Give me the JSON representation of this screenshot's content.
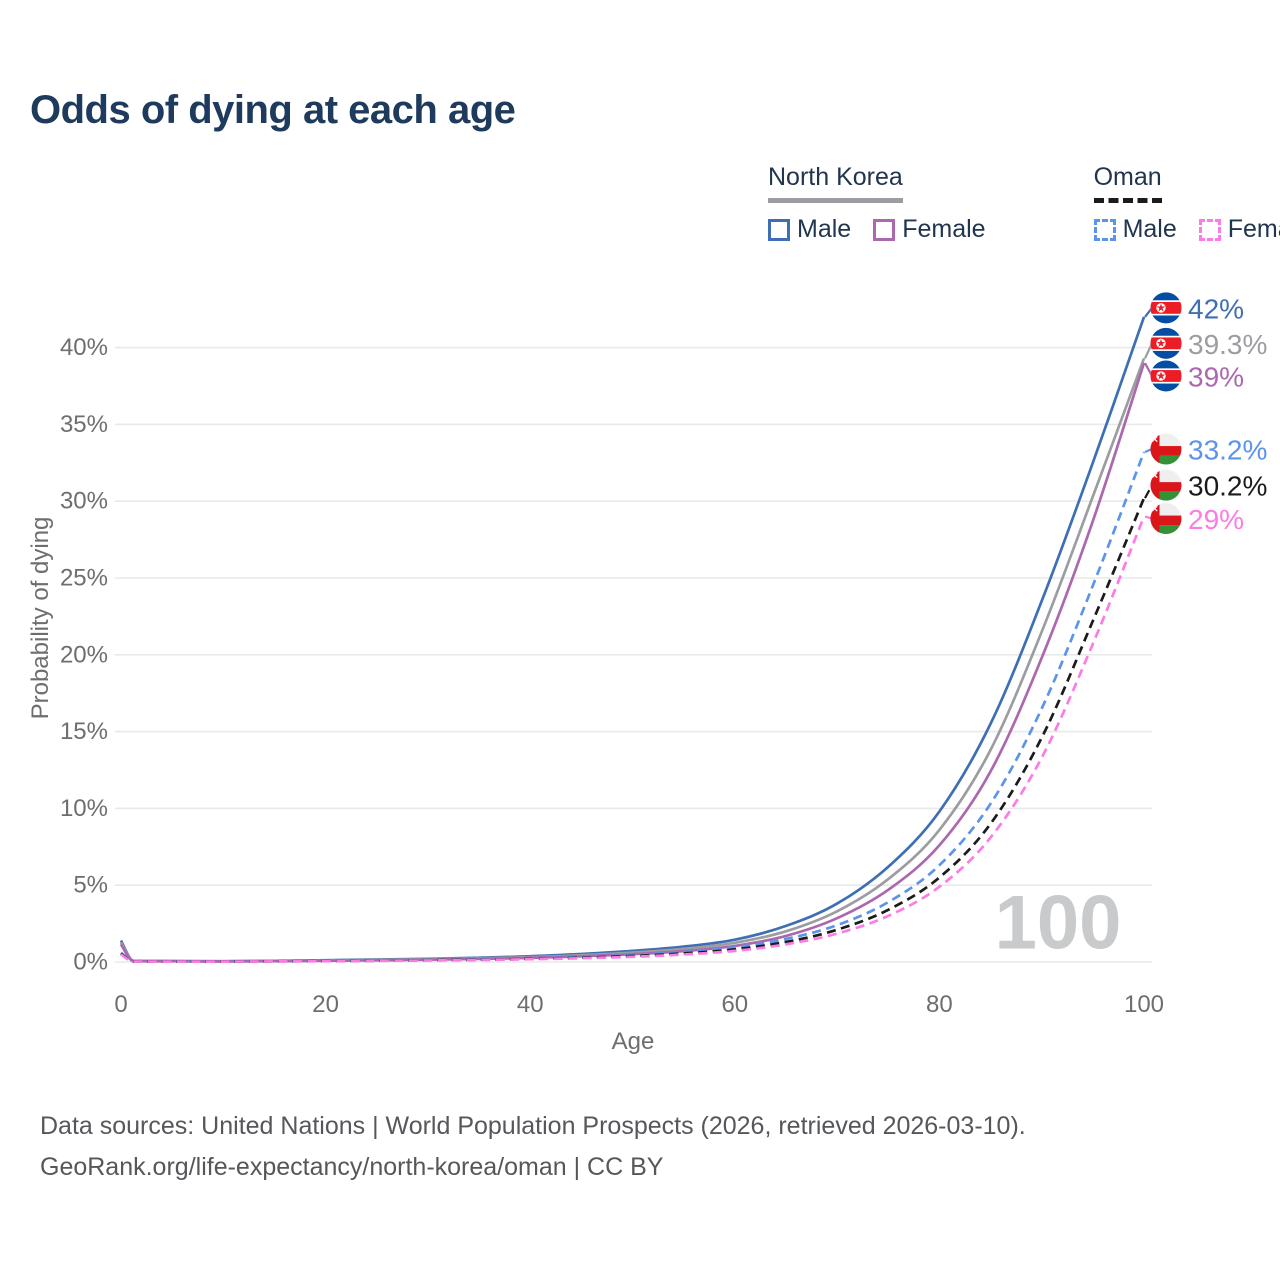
{
  "title": "Odds of dying at each age",
  "legend": {
    "groups": [
      {
        "label": "North Korea",
        "style_series": "nk_both",
        "items": [
          {
            "label": "Male",
            "series": "nk_male"
          },
          {
            "label": "Female",
            "series": "nk_female"
          }
        ]
      },
      {
        "label": "Oman",
        "style_series": "om_both",
        "items": [
          {
            "label": "Male",
            "series": "om_male"
          },
          {
            "label": "Female",
            "series": "om_female"
          }
        ]
      }
    ]
  },
  "watermark": "100",
  "footer": {
    "line1": "Data sources: United Nations | World Population Prospects (2026, retrieved 2026-03-10).",
    "line2": "GeoRank.org/life-expectancy/north-korea/oman | CC BY"
  },
  "chart_data": {
    "type": "line",
    "title": "Odds of dying at each age",
    "xlabel": "Age",
    "ylabel": "Probability of dying",
    "xlim": [
      0,
      100
    ],
    "ylim": [
      0,
      44
    ],
    "x_ticks": [
      0,
      20,
      40,
      60,
      80,
      100
    ],
    "y_ticks": [
      0,
      5,
      10,
      15,
      20,
      25,
      30,
      35,
      40
    ],
    "grid": true,
    "legend_position": "top-right",
    "x_unit": "years",
    "y_unit": "percent",
    "ages": [
      0,
      1,
      2,
      5,
      10,
      15,
      20,
      25,
      30,
      35,
      40,
      45,
      50,
      55,
      60,
      65,
      70,
      75,
      80,
      85,
      90,
      95,
      100
    ],
    "series": [
      {
        "key": "nk_male",
        "country": "North Korea",
        "sex": "Male",
        "color": "#3E6FB4",
        "dash": "solid",
        "flag": "kp",
        "end_label": "42%",
        "label_dy": -9,
        "values": [
          1.4,
          0.15,
          0.08,
          0.06,
          0.05,
          0.07,
          0.12,
          0.16,
          0.21,
          0.28,
          0.38,
          0.52,
          0.72,
          1.0,
          1.45,
          2.35,
          3.8,
          6.2,
          9.8,
          15.5,
          23.5,
          32.5,
          42.0
        ]
      },
      {
        "key": "nk_both",
        "country": "North Korea",
        "sex": "Both sexes",
        "color": "#9B9DA0",
        "dash": "solid",
        "flag": "kp",
        "end_label": "39.3%",
        "label_dy": -15,
        "values": [
          1.27,
          0.14,
          0.07,
          0.055,
          0.045,
          0.06,
          0.1,
          0.135,
          0.18,
          0.24,
          0.32,
          0.44,
          0.61,
          0.85,
          1.25,
          2.0,
          3.3,
          5.4,
          8.6,
          13.8,
          21.5,
          30.3,
          39.3
        ]
      },
      {
        "key": "nk_female",
        "country": "North Korea",
        "sex": "Female",
        "color": "#AC68AE",
        "dash": "solid",
        "flag": "kp",
        "end_label": "39%",
        "label_dy": 13,
        "values": [
          1.15,
          0.12,
          0.06,
          0.05,
          0.04,
          0.05,
          0.08,
          0.11,
          0.15,
          0.2,
          0.27,
          0.37,
          0.51,
          0.71,
          1.05,
          1.7,
          2.85,
          4.7,
          7.6,
          12.4,
          19.8,
          28.7,
          39.0
        ]
      },
      {
        "key": "om_male",
        "country": "Oman",
        "sex": "Male",
        "color": "#5B94EA",
        "dash": "dashed",
        "flag": "om",
        "end_label": "33.2%",
        "label_dy": -3,
        "values": [
          0.6,
          0.06,
          0.04,
          0.03,
          0.03,
          0.05,
          0.07,
          0.1,
          0.13,
          0.17,
          0.23,
          0.32,
          0.45,
          0.65,
          0.95,
          1.5,
          2.4,
          3.9,
          6.3,
          10.3,
          16.5,
          24.5,
          33.2
        ]
      },
      {
        "key": "om_both",
        "country": "Oman",
        "sex": "Both sexes",
        "color": "#1B1B1B",
        "dash": "dashed",
        "flag": "om",
        "end_label": "30.2%",
        "label_dy": -13,
        "values": [
          0.55,
          0.055,
          0.035,
          0.028,
          0.028,
          0.045,
          0.06,
          0.085,
          0.115,
          0.15,
          0.2,
          0.28,
          0.39,
          0.56,
          0.82,
          1.3,
          2.1,
          3.4,
          5.5,
          9.0,
          14.6,
          22.2,
          30.2
        ]
      },
      {
        "key": "om_female",
        "country": "Oman",
        "sex": "Female",
        "color": "#FC7BE4",
        "dash": "dashed",
        "flag": "om",
        "end_label": "29%",
        "label_dy": 2,
        "values": [
          0.5,
          0.05,
          0.03,
          0.025,
          0.025,
          0.04,
          0.055,
          0.075,
          0.1,
          0.13,
          0.18,
          0.25,
          0.34,
          0.49,
          0.72,
          1.15,
          1.85,
          3.0,
          4.9,
          8.1,
          13.3,
          20.7,
          29.0
        ]
      }
    ]
  },
  "colors": {
    "title": "#1E3A5C",
    "tick": "#6E6E6E",
    "grid": "#E9E9E9",
    "footer": "#56575B",
    "watermark": "#C8CACB"
  }
}
